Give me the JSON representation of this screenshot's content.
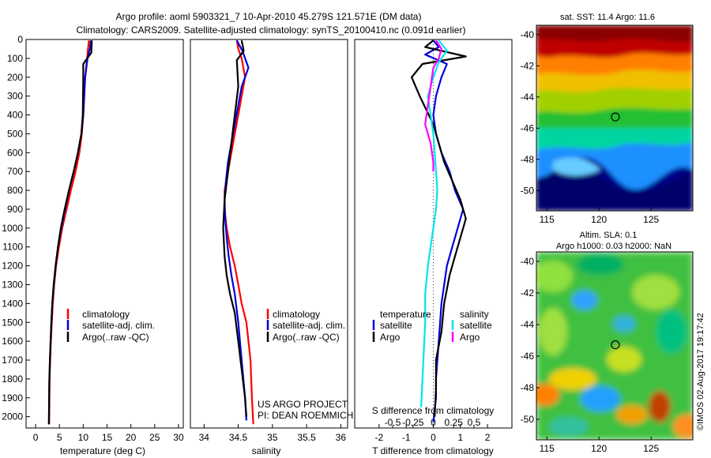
{
  "header": {
    "title_line1": "Argo profile: aoml 5903321_7 10-Apr-2010 45.279S 121.571E (DM data)",
    "title_line2": "Climatology: CARS2009. Satellite-adjusted climatology: synTS_20100410.nc (0.091d earlier)"
  },
  "credit": {
    "project": "US ARGO PROJECT",
    "pi": "PI: DEAN ROEMMICH",
    "stamp": "©IMOS 02-Aug-2017 19:17:42"
  },
  "colors": {
    "climatology": "#ff0000",
    "satellite": "#0000dd",
    "argo": "#000000",
    "salinity_satellite": "#00e5ee",
    "salinity_argo": "#ff00ff"
  },
  "chart_data": [
    {
      "type": "line",
      "xlabel": "temperature (deg C)",
      "ylabel": "",
      "xlim": [
        -2,
        31
      ],
      "ylim": [
        2060,
        0
      ],
      "xticks": [
        0,
        5,
        10,
        15,
        20,
        25,
        30
      ],
      "yticks": [
        0,
        100,
        200,
        300,
        400,
        500,
        600,
        700,
        800,
        900,
        1000,
        1100,
        1200,
        1300,
        1400,
        1500,
        1600,
        1700,
        1800,
        1900,
        2000
      ],
      "legend": [
        "climatology",
        "satellite-adj. clim.",
        "Argo(..raw -QC)"
      ],
      "legend_position": "lower-right",
      "series": [
        {
          "name": "climatology",
          "color": "#ff0000",
          "x": [
            11.2,
            11.0,
            10.8,
            10.4,
            10.2,
            10.0,
            9.7,
            9.2,
            8.4,
            7.4,
            6.5,
            5.6,
            4.9,
            4.3,
            3.9,
            3.6,
            3.4,
            3.2,
            3.05,
            2.95,
            2.9,
            2.85
          ],
          "y": [
            5,
            50,
            100,
            200,
            300,
            400,
            500,
            600,
            700,
            800,
            900,
            1000,
            1100,
            1200,
            1300,
            1400,
            1500,
            1600,
            1700,
            1800,
            1900,
            2040
          ]
        },
        {
          "name": "satellite-adj. clim.",
          "color": "#0000dd",
          "x": [
            11.6,
            11.4,
            10.9,
            10.4,
            10.2,
            10.0,
            9.6,
            8.9,
            8.0,
            7.0,
            6.2,
            5.4,
            4.7,
            4.2,
            3.8,
            3.5,
            3.3,
            3.15,
            3.0,
            2.9,
            2.85,
            2.8
          ],
          "y": [
            5,
            50,
            100,
            200,
            300,
            400,
            500,
            600,
            700,
            800,
            900,
            1000,
            1100,
            1200,
            1300,
            1400,
            1500,
            1600,
            1700,
            1800,
            1900,
            2040
          ]
        },
        {
          "name": "Argo(..raw -QC)",
          "color": "#000000",
          "x": [
            11.8,
            11.7,
            10.0,
            10.0,
            9.95,
            9.9,
            9.6,
            8.9,
            8.0,
            7.0,
            6.1,
            5.3,
            4.7,
            4.2,
            3.8,
            3.5,
            3.3,
            3.15,
            3.0,
            2.9,
            2.85,
            2.8
          ],
          "y": [
            5,
            70,
            130,
            200,
            300,
            400,
            500,
            600,
            700,
            800,
            900,
            1000,
            1100,
            1200,
            1300,
            1400,
            1500,
            1600,
            1700,
            1800,
            1900,
            2040
          ]
        }
      ]
    },
    {
      "type": "line",
      "xlabel": "salinity",
      "ylabel": "",
      "xlim": [
        33.8,
        36.1
      ],
      "ylim": [
        2060,
        0
      ],
      "xticks": [
        34,
        34.5,
        35,
        35.5,
        36
      ],
      "yticks": [],
      "legend": [
        "climatology",
        "satellite-adj. clim.",
        "Argo(..raw -QC)"
      ],
      "legend_position": "lower-right",
      "series": [
        {
          "name": "climatology",
          "color": "#ff0000",
          "x": [
            34.48,
            34.5,
            34.55,
            34.6,
            34.55,
            34.5,
            34.45,
            34.4,
            34.35,
            34.3,
            34.3,
            34.33,
            34.38,
            34.45,
            34.5,
            34.55,
            34.62,
            34.68,
            34.7,
            34.72
          ],
          "y": [
            5,
            50,
            100,
            200,
            300,
            400,
            500,
            600,
            700,
            800,
            900,
            1000,
            1100,
            1200,
            1300,
            1400,
            1500,
            1700,
            1900,
            2040
          ]
        },
        {
          "name": "satellite-adj. clim.",
          "color": "#0000dd",
          "x": [
            34.48,
            34.56,
            34.65,
            34.55,
            34.5,
            34.45,
            34.4,
            34.35,
            34.32,
            34.3,
            34.31,
            34.33,
            34.36,
            34.4,
            34.45,
            34.5,
            34.55,
            34.6,
            34.62
          ],
          "y": [
            5,
            60,
            150,
            250,
            350,
            450,
            550,
            650,
            750,
            850,
            950,
            1050,
            1150,
            1250,
            1350,
            1500,
            1700,
            1900,
            2020
          ]
        },
        {
          "name": "Argo(..raw -QC)",
          "color": "#000000",
          "x": [
            34.55,
            34.58,
            34.48,
            34.5,
            34.45,
            34.4,
            34.35,
            34.3,
            34.28,
            34.3,
            34.33,
            34.38,
            34.45,
            34.5,
            34.55,
            34.6,
            34.62
          ],
          "y": [
            5,
            60,
            110,
            250,
            400,
            550,
            700,
            850,
            1000,
            1150,
            1250,
            1350,
            1450,
            1600,
            1750,
            1900,
            2000
          ]
        }
      ]
    },
    {
      "type": "line",
      "xlabel": "T difference from climatology",
      "xlabel_secondary": "S difference from climatology",
      "ylabel": "",
      "xlim": [
        -2.9,
        2.9
      ],
      "ylim": [
        2060,
        0
      ],
      "xticks": [
        -2,
        -1,
        0,
        1,
        2
      ],
      "xticks_secondary": [
        "-0.5",
        "-0.25",
        "0",
        "0.25",
        "0.5"
      ],
      "yticks": [],
      "legend_title_temperature": "temperature",
      "legend_title_salinity": "salinity",
      "legend": [
        "satellite",
        "Argo",
        "satellite",
        "Argo"
      ],
      "legend_position": "lower-center",
      "series": [
        {
          "name": "satellite",
          "color": "#0000dd",
          "x": [
            0.0,
            0.2,
            -0.3,
            0.5,
            0.3,
            0.1,
            0.0,
            0.1,
            0.3,
            0.6,
            0.8,
            1.1,
            0.9,
            0.7,
            0.5,
            0.3,
            0.2,
            0.1,
            0.1,
            0.0
          ],
          "y": [
            5,
            40,
            80,
            130,
            200,
            300,
            400,
            500,
            600,
            700,
            800,
            900,
            1000,
            1100,
            1200,
            1400,
            1600,
            1800,
            1900,
            2030
          ]
        },
        {
          "name": "Argo",
          "color": "#000000",
          "x": [
            0.0,
            -0.3,
            1.2,
            -0.4,
            -0.8,
            -0.5,
            0.0,
            0.2,
            0.4,
            0.7,
            1.0,
            1.2,
            1.0,
            0.8,
            0.6,
            0.4,
            0.3,
            0.1,
            0.1,
            0.05
          ],
          "y": [
            5,
            40,
            90,
            130,
            200,
            300,
            450,
            550,
            650,
            750,
            850,
            950,
            1050,
            1150,
            1250,
            1400,
            1550,
            1700,
            1850,
            2000
          ]
        },
        {
          "name": "satellite",
          "color": "#00e5ee",
          "x": [
            0.2,
            0.5,
            0.2,
            0.0,
            -0.2,
            -0.1,
            0.0,
            0.05,
            0.1,
            0.15,
            0.1,
            0.0,
            -0.2,
            -0.3,
            -0.3,
            -0.35,
            -0.4,
            -0.45
          ],
          "y": [
            5,
            60,
            120,
            200,
            300,
            400,
            500,
            600,
            700,
            800,
            900,
            1000,
            1200,
            1350,
            1500,
            1650,
            1800,
            1950
          ]
        },
        {
          "name": "Argo",
          "color": "#ff00ff",
          "x": [
            0.1,
            0.3,
            0.2,
            0.0,
            -0.1,
            -0.2,
            -0.3,
            -0.1,
            0.0,
            0.0
          ],
          "y": [
            5,
            50,
            100,
            150,
            250,
            350,
            450,
            550,
            650,
            700
          ]
        }
      ]
    },
    {
      "type": "heatmap",
      "title": "sat. SST: 11.4 Argo: 11.6",
      "xticks": [
        115,
        120,
        125
      ],
      "yticks": [
        -40,
        -42,
        -44,
        -46,
        -48,
        -50
      ],
      "xlim": [
        114,
        129
      ],
      "ylim": [
        -51.3,
        -39.4
      ],
      "marker": {
        "x": 121.571,
        "y": -45.279
      }
    },
    {
      "type": "heatmap",
      "title": "Altim. SLA: 0.1",
      "subtitle": "Argo h1000: 0.03 h2000: NaN",
      "xticks": [
        115,
        120,
        125
      ],
      "yticks": [
        -40,
        -42,
        -44,
        -46,
        -48,
        -50
      ],
      "xlim": [
        114,
        129
      ],
      "ylim": [
        -51.3,
        -39.4
      ],
      "marker": {
        "x": 121.571,
        "y": -45.279
      }
    }
  ]
}
